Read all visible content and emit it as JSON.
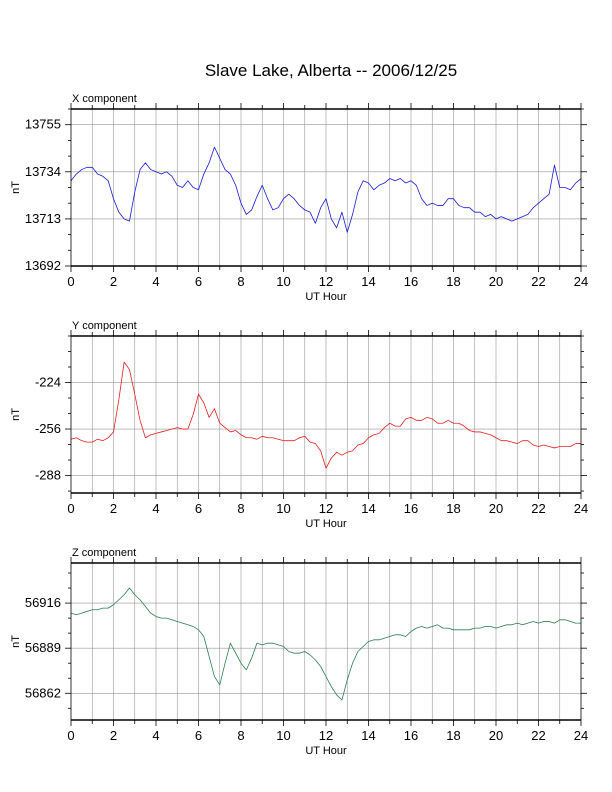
{
  "title": "Slave Lake, Alberta -- 2006/12/25",
  "colors": {
    "x": "#1a1ad6",
    "y": "#e52020",
    "z": "#2e7d4f",
    "grid": "#999999"
  },
  "chart_data": [
    {
      "type": "line",
      "panel_title": "X component",
      "ylabel": "nT",
      "xlabel": "UT Hour",
      "xlim": [
        0,
        24
      ],
      "x_ticks": [
        0,
        2,
        4,
        6,
        8,
        10,
        12,
        14,
        16,
        18,
        20,
        22,
        24
      ],
      "ylim": [
        13692,
        13762
      ],
      "y_ticks": [
        13692,
        13713,
        13734,
        13755
      ],
      "grid": true,
      "series": [
        {
          "color": "#1a1ad6",
          "x": [
            0,
            0.25,
            0.5,
            0.75,
            1,
            1.25,
            1.5,
            1.75,
            2,
            2.25,
            2.5,
            2.75,
            3,
            3.25,
            3.5,
            3.75,
            4,
            4.25,
            4.5,
            4.75,
            5,
            5.25,
            5.5,
            5.75,
            6,
            6.25,
            6.5,
            6.75,
            7,
            7.25,
            7.5,
            7.75,
            8,
            8.25,
            8.5,
            8.75,
            9,
            9.25,
            9.5,
            9.75,
            10,
            10.25,
            10.5,
            10.75,
            11,
            11.25,
            11.5,
            11.75,
            12,
            12.25,
            12.5,
            12.75,
            13,
            13.25,
            13.5,
            13.75,
            14,
            14.25,
            14.5,
            14.75,
            15,
            15.25,
            15.5,
            15.75,
            16,
            16.25,
            16.5,
            16.75,
            17,
            17.25,
            17.5,
            17.75,
            18,
            18.25,
            18.5,
            18.75,
            19,
            19.25,
            19.5,
            19.75,
            20,
            20.25,
            20.5,
            20.75,
            21,
            21.25,
            21.5,
            21.75,
            22,
            22.25,
            22.5,
            22.75,
            23,
            23.25,
            23.5,
            23.75,
            24
          ],
          "values": [
            13730,
            13733,
            13735,
            13736,
            13736,
            13733,
            13732,
            13730,
            13722,
            13716,
            13713,
            13712,
            13725,
            13735,
            13738,
            13735,
            13734,
            13733,
            13734,
            13732,
            13728,
            13727,
            13730,
            13727,
            13726,
            13733,
            13738,
            13745,
            13740,
            13735,
            13733,
            13728,
            13720,
            13715,
            13717,
            13723,
            13728,
            13722,
            13717,
            13718,
            13722,
            13724,
            13722,
            13719,
            13717,
            13716,
            13711,
            13718,
            13722,
            13713,
            13709,
            13716,
            13707,
            13715,
            13725,
            13730,
            13729,
            13726,
            13728,
            13729,
            13731,
            13730,
            13731,
            13729,
            13730,
            13728,
            13722,
            13719,
            13720,
            13719,
            13719,
            13722,
            13722,
            13719,
            13718,
            13718,
            13716,
            13716,
            13714,
            13715,
            13713,
            13714,
            13713,
            13712,
            13713,
            13714,
            13715,
            13718,
            13720,
            13722,
            13724,
            13737,
            13727,
            13727,
            13726,
            13729,
            13731
          ]
        }
      ]
    },
    {
      "type": "line",
      "panel_title": "Y component",
      "ylabel": "nT",
      "xlabel": "UT Hour",
      "xlim": [
        0,
        24
      ],
      "x_ticks": [
        0,
        2,
        4,
        6,
        8,
        10,
        12,
        14,
        16,
        18,
        20,
        22,
        24
      ],
      "ylim": [
        -300,
        -192
      ],
      "y_ticks": [
        -288,
        -256,
        -224
      ],
      "grid": true,
      "series": [
        {
          "color": "#e52020",
          "x": [
            0,
            0.25,
            0.5,
            0.75,
            1,
            1.25,
            1.5,
            1.75,
            2,
            2.25,
            2.5,
            2.75,
            3,
            3.25,
            3.5,
            3.75,
            4,
            4.25,
            4.5,
            4.75,
            5,
            5.25,
            5.5,
            5.75,
            6,
            6.25,
            6.5,
            6.75,
            7,
            7.25,
            7.5,
            7.75,
            8,
            8.25,
            8.5,
            8.75,
            9,
            9.25,
            9.5,
            9.75,
            10,
            10.25,
            10.5,
            10.75,
            11,
            11.25,
            11.5,
            11.75,
            12,
            12.25,
            12.5,
            12.75,
            13,
            13.25,
            13.5,
            13.75,
            14,
            14.25,
            14.5,
            14.75,
            15,
            15.25,
            15.5,
            15.75,
            16,
            16.25,
            16.5,
            16.75,
            17,
            17.25,
            17.5,
            17.75,
            18,
            18.25,
            18.5,
            18.75,
            19,
            19.25,
            19.5,
            19.75,
            20,
            20.25,
            20.5,
            20.75,
            21,
            21.25,
            21.5,
            21.75,
            22,
            22.25,
            22.5,
            22.75,
            23,
            23.25,
            23.5,
            23.75,
            24
          ],
          "values": [
            -263,
            -262,
            -264,
            -265,
            -265,
            -263,
            -264,
            -262,
            -258,
            -236,
            -210,
            -215,
            -232,
            -250,
            -262,
            -260,
            -259,
            -258,
            -257,
            -256,
            -255,
            -256,
            -256,
            -246,
            -232,
            -238,
            -248,
            -242,
            -252,
            -255,
            -258,
            -257,
            -260,
            -262,
            -262,
            -263,
            -261,
            -262,
            -262,
            -263,
            -264,
            -264,
            -264,
            -262,
            -261,
            -265,
            -266,
            -271,
            -283,
            -276,
            -272,
            -274,
            -272,
            -271,
            -267,
            -266,
            -262,
            -260,
            -259,
            -255,
            -252,
            -254,
            -254,
            -249,
            -248,
            -250,
            -250,
            -248,
            -249,
            -252,
            -252,
            -250,
            -252,
            -252,
            -254,
            -257,
            -258,
            -258,
            -259,
            -260,
            -262,
            -264,
            -264,
            -265,
            -266,
            -264,
            -264,
            -267,
            -268,
            -267,
            -268,
            -269,
            -268,
            -268,
            -268,
            -266,
            -266
          ]
        }
      ]
    },
    {
      "type": "line",
      "panel_title": "Z component",
      "ylabel": "nT",
      "xlabel": "UT Hour",
      "xlim": [
        0,
        24
      ],
      "x_ticks": [
        0,
        2,
        4,
        6,
        8,
        10,
        12,
        14,
        16,
        18,
        20,
        22,
        24
      ],
      "ylim": [
        56846,
        56940
      ],
      "y_ticks": [
        56862,
        56889,
        56916
      ],
      "grid": true,
      "series": [
        {
          "color": "#2e7d4f",
          "x": [
            0,
            0.25,
            0.5,
            0.75,
            1,
            1.25,
            1.5,
            1.75,
            2,
            2.25,
            2.5,
            2.75,
            3,
            3.25,
            3.5,
            3.75,
            4,
            4.25,
            4.5,
            4.75,
            5,
            5.25,
            5.5,
            5.75,
            6,
            6.25,
            6.5,
            6.75,
            7,
            7.25,
            7.5,
            7.75,
            8,
            8.25,
            8.5,
            8.75,
            9,
            9.25,
            9.5,
            9.75,
            10,
            10.25,
            10.5,
            10.75,
            11,
            11.25,
            11.5,
            11.75,
            12,
            12.25,
            12.5,
            12.75,
            13,
            13.25,
            13.5,
            13.75,
            14,
            14.25,
            14.5,
            14.75,
            15,
            15.25,
            15.5,
            15.75,
            16,
            16.25,
            16.5,
            16.75,
            17,
            17.25,
            17.5,
            17.75,
            18,
            18.25,
            18.5,
            18.75,
            19,
            19.25,
            19.5,
            19.75,
            20,
            20.25,
            20.5,
            20.75,
            21,
            21.25,
            21.5,
            21.75,
            22,
            22.25,
            22.5,
            22.75,
            23,
            23.25,
            23.5,
            23.75,
            24
          ],
          "values": [
            56910,
            56909,
            56910,
            56911,
            56912,
            56912,
            56913,
            56913,
            56915,
            56918,
            56921,
            56925,
            56921,
            56918,
            56914,
            56910,
            56908,
            56907,
            56907,
            56906,
            56905,
            56904,
            56903,
            56902,
            56900,
            56896,
            56884,
            56872,
            56867,
            56880,
            56892,
            56886,
            56880,
            56876,
            56883,
            56892,
            56891,
            56892,
            56892,
            56891,
            56890,
            56887,
            56886,
            56886,
            56887,
            56885,
            56882,
            56878,
            56872,
            56866,
            56861,
            56858,
            56870,
            56880,
            56887,
            56890,
            56893,
            56894,
            56894,
            56895,
            56896,
            56897,
            56897,
            56896,
            56899,
            56901,
            56902,
            56901,
            56902,
            56903,
            56901,
            56901,
            56900,
            56900,
            56900,
            56900,
            56901,
            56901,
            56902,
            56902,
            56901,
            56902,
            56903,
            56903,
            56904,
            56903,
            56904,
            56905,
            56904,
            56905,
            56905,
            56904,
            56906,
            56906,
            56905,
            56904,
            56904
          ]
        }
      ]
    }
  ]
}
